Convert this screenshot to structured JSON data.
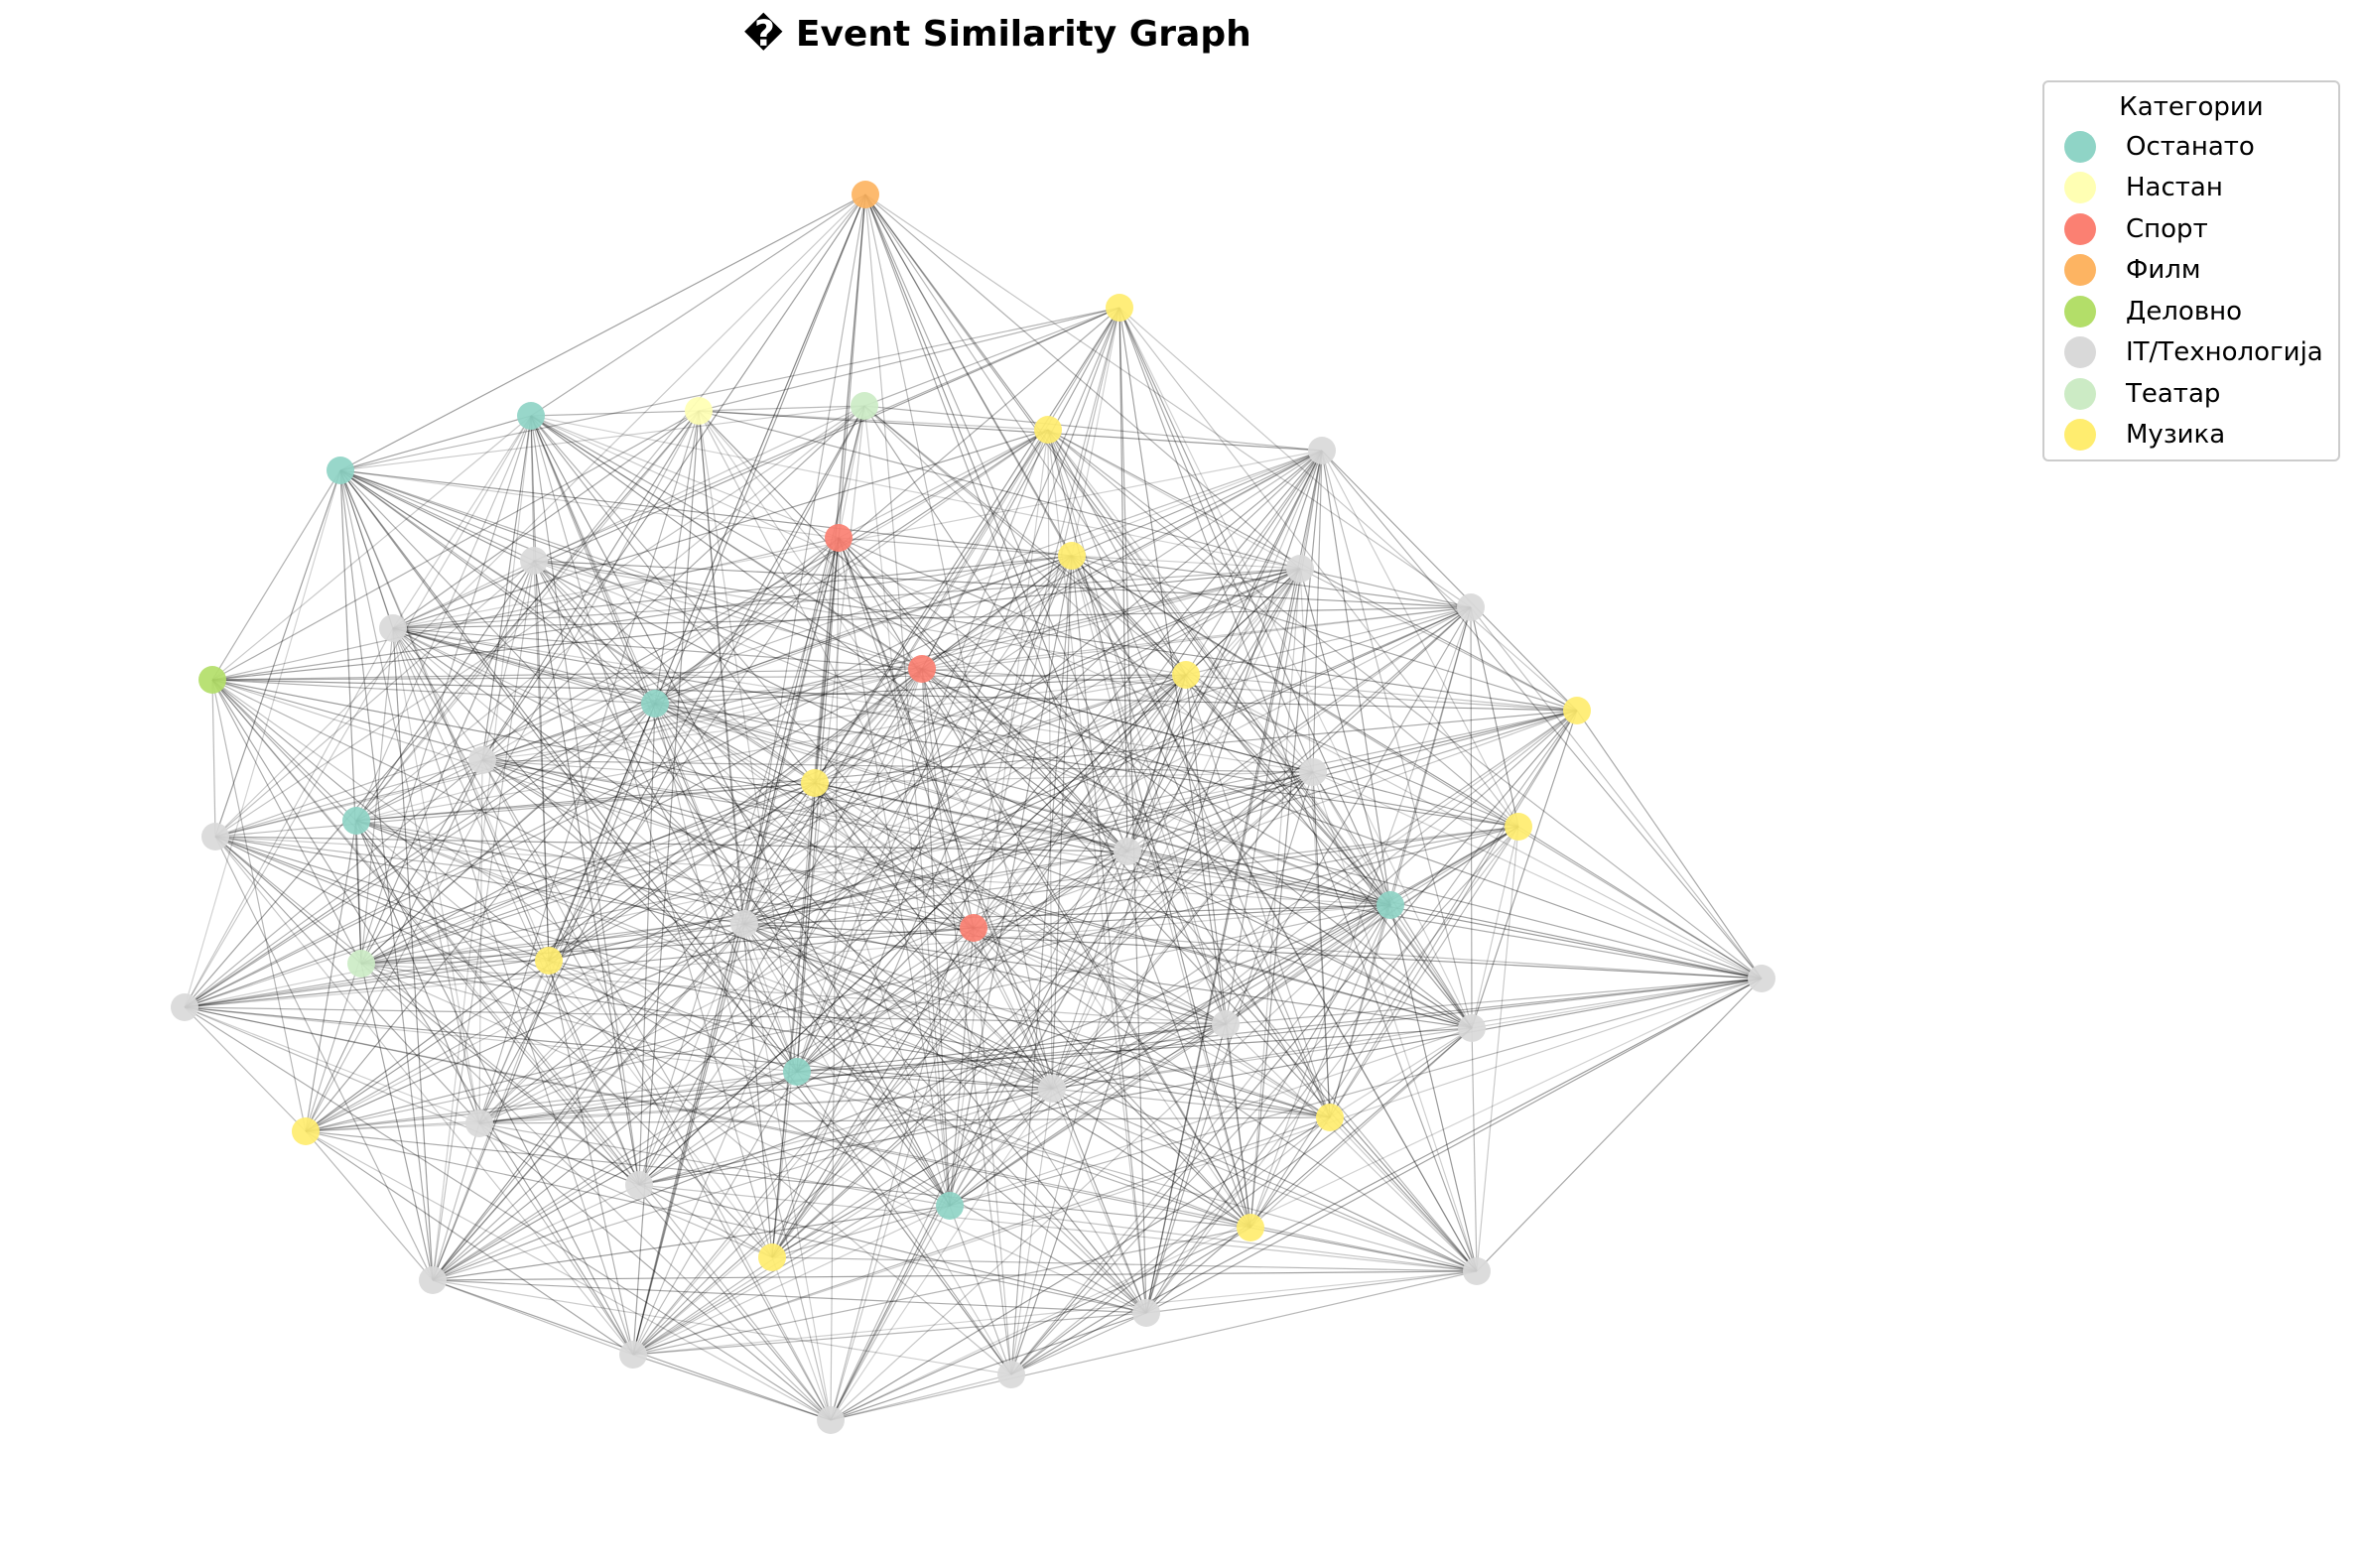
{
  "title": "� Event Similarity Graph",
  "legend": {
    "title": "Категории",
    "items": [
      {
        "label": "Останато",
        "color": "#8fd4c6"
      },
      {
        "label": "Настан",
        "color": "#ffffb3"
      },
      {
        "label": "Спорт",
        "color": "#fb8072"
      },
      {
        "label": "Филм",
        "color": "#fdb462"
      },
      {
        "label": "Деловно",
        "color": "#b3de69"
      },
      {
        "label": "IT/Технологија",
        "color": "#d9d9d9"
      },
      {
        "label": "Театар",
        "color": "#ccebc5"
      },
      {
        "label": "Музика",
        "color": "#ffed6f"
      }
    ]
  }
}
